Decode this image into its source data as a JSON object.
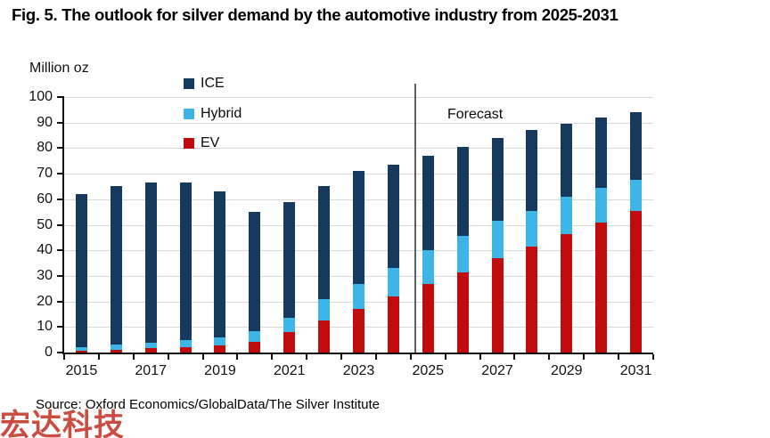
{
  "title": "Fig. 5. The outlook for silver demand by the automotive industry from 2025-2031",
  "y_axis_unit": "Million oz",
  "forecast_label": "Forecast",
  "source": "Source: Oxford Economics/GlobalData/The Silver Institute",
  "watermark": "宏达科技",
  "legend": {
    "position": "upper-left-vertical",
    "items": [
      {
        "label": "ICE",
        "color": "#163a5e"
      },
      {
        "label": "Hybrid",
        "color": "#3db5e6"
      },
      {
        "label": "EV",
        "color": "#c00c0c"
      }
    ]
  },
  "colors": {
    "ice": "#163a5e",
    "hybrid": "#3db5e6",
    "ev": "#c00c0c",
    "gridline": "#d9d9d9",
    "axis": "#111111",
    "forecast_divider": "#5f5f5f",
    "watermark_red": "#c43527"
  },
  "chart_data": {
    "type": "bar",
    "stacked": true,
    "title": "Fig. 5. The outlook for silver demand by the automotive industry from 2025-2031",
    "xlabel": "",
    "ylabel": "Million oz",
    "ylim": [
      0,
      100
    ],
    "y_ticks": [
      0,
      10,
      20,
      30,
      40,
      50,
      60,
      70,
      80,
      90,
      100
    ],
    "grid": "horizontal",
    "categories": [
      "2015",
      "2016",
      "2017",
      "2018",
      "2019",
      "2020",
      "2021",
      "2022",
      "2023",
      "2024",
      "2025",
      "2026",
      "2027",
      "2028",
      "2029",
      "2030",
      "2031"
    ],
    "x_tick_labels": [
      "2015",
      "2017",
      "2019",
      "2021",
      "2023",
      "2025",
      "2027",
      "2029",
      "2031"
    ],
    "x_tick_every": 2,
    "forecast_divider_after_index": 9,
    "forecast_start_category": "2025",
    "series": [
      {
        "name": "EV",
        "color": "#c00c0c",
        "values": [
          0.7,
          1.2,
          1.8,
          2.2,
          2.8,
          4.2,
          8.0,
          12.7,
          17.0,
          21.8,
          27.0,
          31.5,
          37.0,
          41.5,
          46.5,
          51.0,
          55.5
        ]
      },
      {
        "name": "Hybrid",
        "color": "#3db5e6",
        "values": [
          1.5,
          1.8,
          2.2,
          2.6,
          3.2,
          4.2,
          5.7,
          8.3,
          10.0,
          11.2,
          13.0,
          14.0,
          14.5,
          14.0,
          14.5,
          13.5,
          12.0
        ]
      },
      {
        "name": "ICE",
        "color": "#163a5e",
        "values": [
          59.8,
          62.0,
          62.5,
          61.7,
          57.0,
          46.6,
          45.3,
          44.0,
          44.0,
          40.5,
          37.0,
          35.0,
          32.5,
          31.5,
          28.5,
          27.5,
          26.5
        ]
      }
    ],
    "totals": [
      62.0,
      65.0,
      66.5,
      66.5,
      63.0,
      55.0,
      59.0,
      65.0,
      71.0,
      73.5,
      77.0,
      80.5,
      84.0,
      87.0,
      89.5,
      92.0,
      94.0
    ]
  }
}
